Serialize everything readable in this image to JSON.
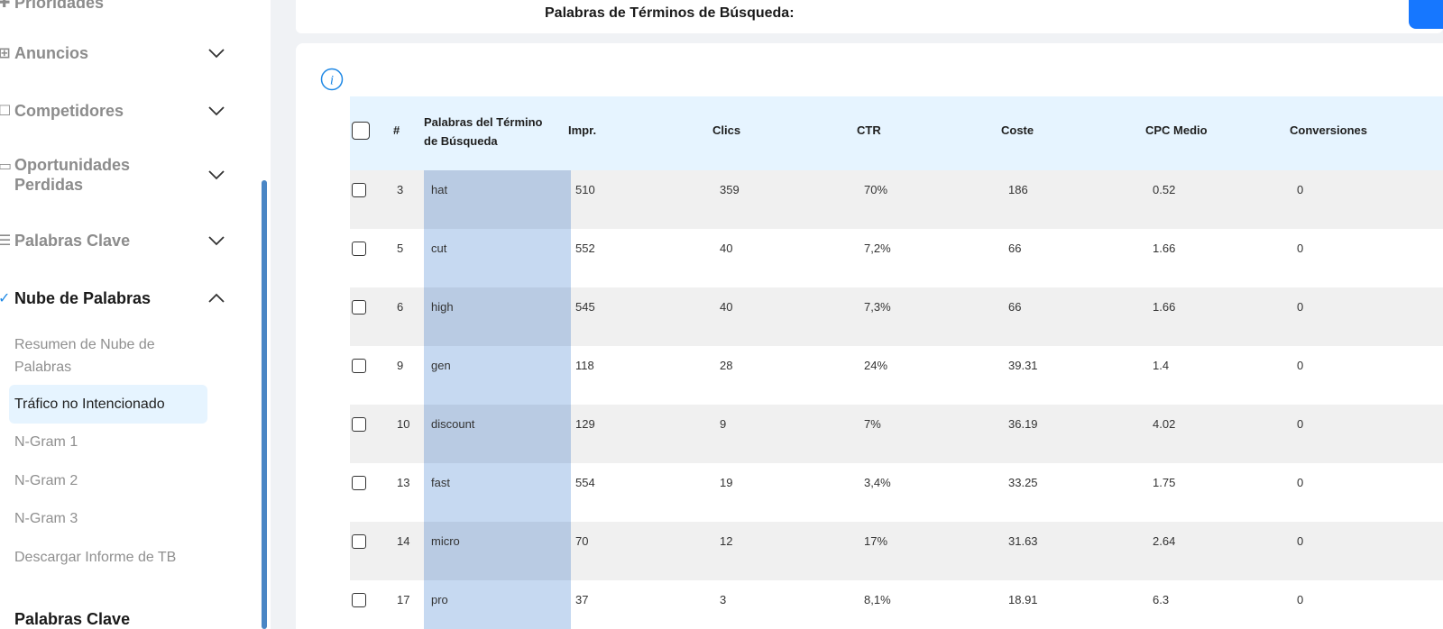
{
  "sidebar": {
    "prev_item": "Prioridades",
    "items": [
      {
        "label": "Anuncios",
        "icon": "grid-icon"
      },
      {
        "label": "Competidores",
        "icon": "monitor-icon"
      },
      {
        "label": "Oportunidades Perdidas",
        "icon": "window-icon"
      },
      {
        "label": "Palabras Clave",
        "icon": "list-icon"
      },
      {
        "label": "Nube de Palabras",
        "icon": "check-icon"
      }
    ],
    "sub_items": [
      "Resumen de Nube de Palabras",
      "Tráfico no Intencionado",
      "N-Gram 1",
      "N-Gram 2",
      "N-Gram 3",
      "Descargar Informe de TB"
    ],
    "next_section": "Palabras Clave"
  },
  "topbar": {
    "title": "Palabras de Términos de Búsqueda:"
  },
  "table": {
    "headers": [
      "#",
      "Palabras del Término de Búsqueda",
      "Impr.",
      "Clics",
      "CTR",
      "Coste",
      "CPC Medio",
      "Conversiones"
    ],
    "rows": [
      {
        "num": "3",
        "term": "hat",
        "impr": "510",
        "clics": "359",
        "ctr": "70%",
        "coste": "186",
        "cpc": "0.52",
        "conv": "0"
      },
      {
        "num": "5",
        "term": "cut",
        "impr": "552",
        "clics": "40",
        "ctr": "7,2%",
        "coste": "66",
        "cpc": "1.66",
        "conv": "0"
      },
      {
        "num": "6",
        "term": "high",
        "impr": "545",
        "clics": "40",
        "ctr": "7,3%",
        "coste": "66",
        "cpc": "1.66",
        "conv": "0"
      },
      {
        "num": "9",
        "term": "gen",
        "impr": "118",
        "clics": "28",
        "ctr": "24%",
        "coste": "39.31",
        "cpc": "1.4",
        "conv": "0"
      },
      {
        "num": "10",
        "term": "discount",
        "impr": "129",
        "clics": "9",
        "ctr": "7%",
        "coste": "36.19",
        "cpc": "4.02",
        "conv": "0"
      },
      {
        "num": "13",
        "term": "fast",
        "impr": "554",
        "clics": "19",
        "ctr": "3,4%",
        "coste": "33.25",
        "cpc": "1.75",
        "conv": "0"
      },
      {
        "num": "14",
        "term": "micro",
        "impr": "70",
        "clics": "12",
        "ctr": "17%",
        "coste": "31.63",
        "cpc": "2.64",
        "conv": "0"
      },
      {
        "num": "17",
        "term": "pro",
        "impr": "37",
        "clics": "3",
        "ctr": "8,1%",
        "coste": "18.91",
        "cpc": "6.3",
        "conv": "0"
      }
    ]
  },
  "colors": {
    "accent": "#1677ff",
    "header_bg": "#e6f4ff",
    "keyword_col_dark": "#b9cbe3",
    "keyword_col_light": "#c6d9f1",
    "scrollbar": "#4a86c5"
  }
}
